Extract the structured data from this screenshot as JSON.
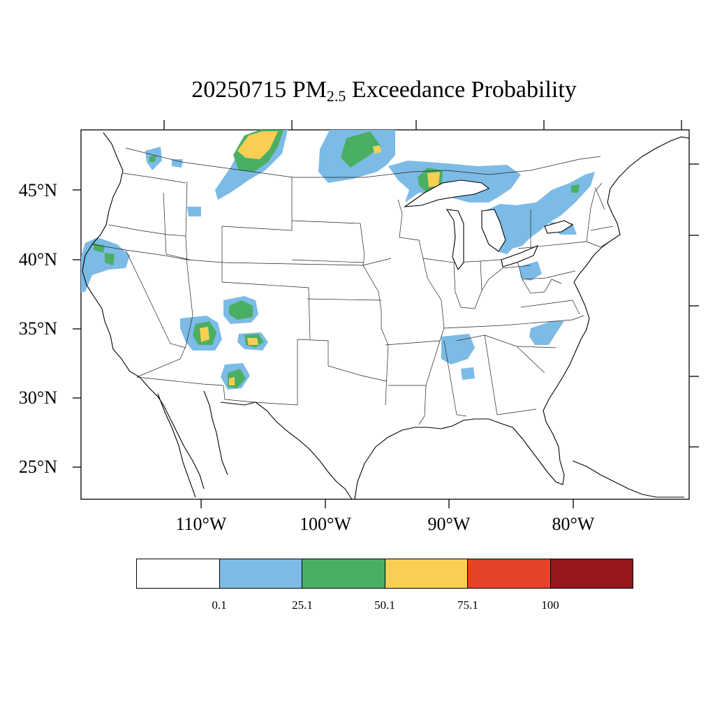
{
  "title": {
    "date": "20250715",
    "pm": "PM",
    "sub": "2.5",
    "rest": "Exceedance Probability"
  },
  "lat_labels": [
    "45°N",
    "40°N",
    "35°N",
    "30°N",
    "25°N"
  ],
  "lon_labels": [
    "110°W",
    "100°W",
    "90°W",
    "80°W"
  ],
  "colorbar": {
    "colors": [
      "#ffffff",
      "#7cbbe6",
      "#4aaf63",
      "#f9cf53",
      "#e34328",
      "#97181c"
    ],
    "labels": [
      "0.1",
      "25.1",
      "50.1",
      "75.1",
      "100"
    ]
  },
  "map_colors": {
    "blue": "#7cbbe6",
    "green": "#4aaf63",
    "yellow": "#f9cf53"
  }
}
